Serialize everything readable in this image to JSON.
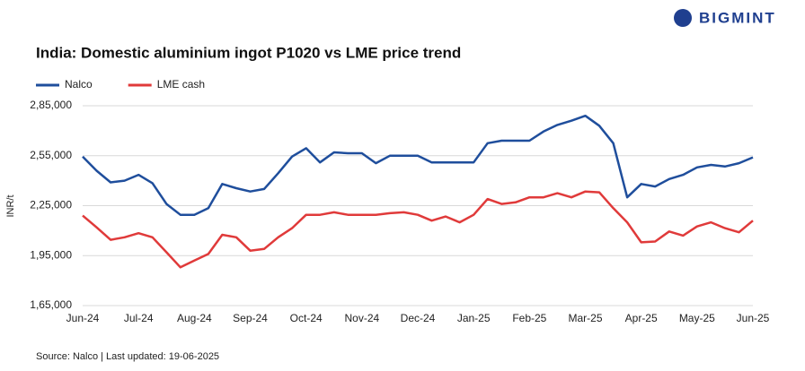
{
  "chart_data": {
    "type": "line",
    "logo": "BIGMINT",
    "title": "India: Domestic aluminium ingot P1020 vs LME price trend",
    "ylabel": "INR/t",
    "source": "Source: Nalco | Last updated: 19-06-2025",
    "categories": [
      "Jun-24",
      null,
      null,
      null,
      "Jul-24",
      null,
      null,
      null,
      "Aug-24",
      null,
      null,
      null,
      "Sep-24",
      null,
      null,
      null,
      "Oct-24",
      null,
      null,
      null,
      "Nov-24",
      null,
      null,
      null,
      "Dec-24",
      null,
      null,
      null,
      "Jan-25",
      null,
      null,
      null,
      "Feb-25",
      null,
      null,
      null,
      "Mar-25",
      null,
      null,
      null,
      "Apr-25",
      null,
      null,
      null,
      "May-25",
      null,
      null,
      null,
      "Jun-25"
    ],
    "series": [
      {
        "name": "Nalco",
        "color": "#1f4e9c",
        "values": [
          254500,
          246000,
          239000,
          240000,
          243500,
          238500,
          226000,
          219500,
          219500,
          223500,
          238000,
          235500,
          233500,
          235000,
          244500,
          254500,
          259500,
          251000,
          257000,
          256500,
          256500,
          250500,
          255000,
          255000,
          255000,
          251000,
          251000,
          251000,
          251000,
          262500,
          264000,
          264000,
          264000,
          269500,
          273500,
          276000,
          279000,
          273000,
          262500,
          230000,
          238000,
          236500,
          241000,
          243500,
          248000,
          249500,
          248500,
          250500,
          254000
        ]
      },
      {
        "name": "LME cash",
        "color": "#e03a3a",
        "values": [
          219000,
          212000,
          204500,
          206000,
          208500,
          206000,
          197000,
          188000,
          192000,
          196000,
          207500,
          206000,
          198000,
          199000,
          206000,
          211500,
          219500,
          219500,
          221000,
          219500,
          219500,
          219500,
          220500,
          221000,
          219500,
          216000,
          218500,
          215000,
          219500,
          229000,
          226000,
          227000,
          230000,
          230000,
          232500,
          230000,
          233500,
          233000,
          223500,
          215000,
          203000,
          203500,
          209500,
          207000,
          212500,
          215000,
          211500,
          209000,
          216000
        ]
      }
    ],
    "ylim": [
      165000,
      285000
    ],
    "yticks": [
      {
        "value": 165000,
        "label": "1,65,000"
      },
      {
        "value": 195000,
        "label": "1,95,000"
      },
      {
        "value": 225000,
        "label": "2,25,000"
      },
      {
        "value": 255000,
        "label": "2,55,000"
      },
      {
        "value": 285000,
        "label": "2,85,000"
      }
    ],
    "grid": true
  }
}
